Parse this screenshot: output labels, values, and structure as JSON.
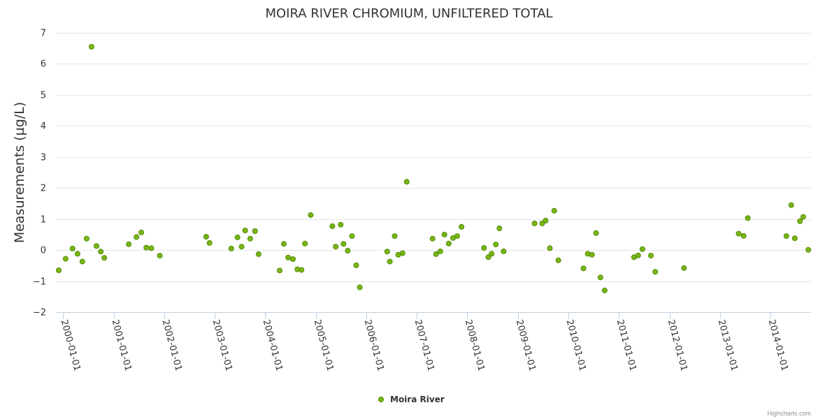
{
  "credits": "Highcharts.com",
  "chart_data": {
    "type": "scatter",
    "title": "MOIRA RIVER CHROMIUM, UNFILTERED TOTAL",
    "xlabel": "",
    "ylabel": "Measurements (µg/L)",
    "ylim": [
      -2,
      7
    ],
    "yticks": [
      -2,
      -1,
      0,
      1,
      2,
      3,
      4,
      5,
      6,
      7
    ],
    "xlim": [
      "1999-11-11",
      "2014-10-20"
    ],
    "xtick_labels": [
      "2000-01-01",
      "2001-01-01",
      "2002-01-01",
      "2003-01-01",
      "2004-01-01",
      "2005-01-01",
      "2006-01-01",
      "2007-01-01",
      "2008-01-01",
      "2009-01-01",
      "2010-01-01",
      "2011-01-01",
      "2012-01-01",
      "2013-01-01",
      "2014-01-01"
    ],
    "grid": true,
    "legend_position": "bottom-center",
    "series": [
      {
        "name": "Moira River",
        "color": "#7cb518",
        "border_color": "#4c8c00",
        "points": [
          {
            "x": "1999-12-01",
            "y": -0.65
          },
          {
            "x": "2000-01-20",
            "y": -0.28
          },
          {
            "x": "2000-03-10",
            "y": 0.05
          },
          {
            "x": "2000-04-15",
            "y": -0.12
          },
          {
            "x": "2000-05-20",
            "y": -0.37
          },
          {
            "x": "2000-06-20",
            "y": 0.37
          },
          {
            "x": "2000-07-25",
            "y": 6.55
          },
          {
            "x": "2000-08-30",
            "y": 0.13
          },
          {
            "x": "2000-09-30",
            "y": -0.05
          },
          {
            "x": "2000-10-25",
            "y": -0.25
          },
          {
            "x": "2001-04-20",
            "y": 0.19
          },
          {
            "x": "2001-06-15",
            "y": 0.42
          },
          {
            "x": "2001-07-20",
            "y": 0.57
          },
          {
            "x": "2001-08-25",
            "y": 0.08
          },
          {
            "x": "2001-09-30",
            "y": 0.06
          },
          {
            "x": "2001-12-01",
            "y": -0.18
          },
          {
            "x": "2002-11-01",
            "y": 0.43
          },
          {
            "x": "2002-11-25",
            "y": 0.23
          },
          {
            "x": "2003-05-01",
            "y": 0.05
          },
          {
            "x": "2003-06-15",
            "y": 0.41
          },
          {
            "x": "2003-07-15",
            "y": 0.11
          },
          {
            "x": "2003-08-10",
            "y": 0.63
          },
          {
            "x": "2003-09-15",
            "y": 0.37
          },
          {
            "x": "2003-10-20",
            "y": 0.61
          },
          {
            "x": "2003-11-15",
            "y": -0.13
          },
          {
            "x": "2004-04-15",
            "y": -0.66
          },
          {
            "x": "2004-05-15",
            "y": 0.2
          },
          {
            "x": "2004-06-15",
            "y": -0.24
          },
          {
            "x": "2004-07-20",
            "y": -0.29
          },
          {
            "x": "2004-08-20",
            "y": -0.62
          },
          {
            "x": "2004-09-20",
            "y": -0.64
          },
          {
            "x": "2004-10-15",
            "y": 0.21
          },
          {
            "x": "2004-11-25",
            "y": 1.13
          },
          {
            "x": "2005-05-01",
            "y": 0.77
          },
          {
            "x": "2005-05-25",
            "y": 0.11
          },
          {
            "x": "2005-06-30",
            "y": 0.82
          },
          {
            "x": "2005-07-20",
            "y": 0.2
          },
          {
            "x": "2005-08-20",
            "y": -0.02
          },
          {
            "x": "2005-09-20",
            "y": 0.45
          },
          {
            "x": "2005-10-20",
            "y": -0.49
          },
          {
            "x": "2005-11-15",
            "y": -1.2
          },
          {
            "x": "2006-06-01",
            "y": -0.05
          },
          {
            "x": "2006-06-20",
            "y": -0.37
          },
          {
            "x": "2006-07-25",
            "y": 0.45
          },
          {
            "x": "2006-08-20",
            "y": -0.15
          },
          {
            "x": "2006-09-20",
            "y": -0.1
          },
          {
            "x": "2006-10-20",
            "y": 2.2
          },
          {
            "x": "2007-04-25",
            "y": 0.37
          },
          {
            "x": "2007-05-20",
            "y": -0.13
          },
          {
            "x": "2007-06-20",
            "y": -0.04
          },
          {
            "x": "2007-07-20",
            "y": 0.5
          },
          {
            "x": "2007-08-20",
            "y": 0.21
          },
          {
            "x": "2007-09-20",
            "y": 0.39
          },
          {
            "x": "2007-10-20",
            "y": 0.45
          },
          {
            "x": "2007-11-20",
            "y": 0.75
          },
          {
            "x": "2008-05-01",
            "y": 0.07
          },
          {
            "x": "2008-06-01",
            "y": -0.23
          },
          {
            "x": "2008-06-25",
            "y": -0.12
          },
          {
            "x": "2008-07-25",
            "y": 0.18
          },
          {
            "x": "2008-08-20",
            "y": 0.7
          },
          {
            "x": "2008-09-20",
            "y": -0.04
          },
          {
            "x": "2009-05-01",
            "y": 0.86
          },
          {
            "x": "2009-06-25",
            "y": 0.86
          },
          {
            "x": "2009-07-20",
            "y": 0.95
          },
          {
            "x": "2009-08-20",
            "y": 0.06
          },
          {
            "x": "2009-09-20",
            "y": 1.27
          },
          {
            "x": "2009-10-20",
            "y": -0.33
          },
          {
            "x": "2010-04-20",
            "y": -0.59
          },
          {
            "x": "2010-05-20",
            "y": -0.12
          },
          {
            "x": "2010-06-20",
            "y": -0.15
          },
          {
            "x": "2010-07-20",
            "y": 0.55
          },
          {
            "x": "2010-08-20",
            "y": -0.88
          },
          {
            "x": "2010-09-20",
            "y": -1.3
          },
          {
            "x": "2011-04-20",
            "y": -0.23
          },
          {
            "x": "2011-05-20",
            "y": -0.17
          },
          {
            "x": "2011-06-20",
            "y": 0.03
          },
          {
            "x": "2011-08-20",
            "y": -0.18
          },
          {
            "x": "2011-09-20",
            "y": -0.7
          },
          {
            "x": "2012-04-15",
            "y": -0.58
          },
          {
            "x": "2013-05-15",
            "y": 0.53
          },
          {
            "x": "2013-06-20",
            "y": 0.46
          },
          {
            "x": "2013-07-20",
            "y": 1.03
          },
          {
            "x": "2014-04-25",
            "y": 0.45
          },
          {
            "x": "2014-05-30",
            "y": 1.45
          },
          {
            "x": "2014-06-25",
            "y": 0.38
          },
          {
            "x": "2014-08-01",
            "y": 0.93
          },
          {
            "x": "2014-08-25",
            "y": 1.07
          },
          {
            "x": "2014-10-01",
            "y": 0.01
          }
        ]
      }
    ]
  }
}
